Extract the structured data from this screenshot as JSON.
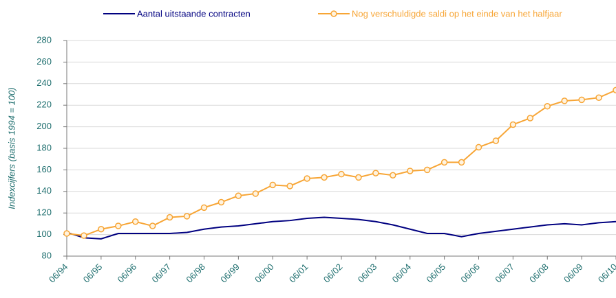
{
  "chart_data": {
    "type": "line",
    "y_label": "Indexcijfers (basis 1994 = 100)",
    "categories": [
      "06/94",
      null,
      "06/95",
      null,
      "06/96",
      null,
      "06/97",
      null,
      "06/98",
      null,
      "06/99",
      null,
      "06/00",
      null,
      "06/01",
      null,
      "06/02",
      null,
      "06/03",
      null,
      "06/04",
      null,
      "06/05",
      null,
      "06/06",
      null,
      "06/07",
      null,
      "06/08",
      null,
      "06/09",
      null,
      "06/10"
    ],
    "series": [
      {
        "name": "Aantal uitstaande contracten",
        "color": "#000080",
        "marker": false,
        "values": [
          102,
          97,
          96,
          101,
          101,
          101,
          101,
          102,
          105,
          107,
          108,
          110,
          112,
          113,
          115,
          116,
          115,
          114,
          112,
          109,
          105,
          101,
          101,
          98,
          101,
          103,
          105,
          107,
          109,
          110,
          109,
          111,
          112
        ]
      },
      {
        "name": "Nog verschuldigde saldi op het einde van het halfjaar",
        "color": "#f7a535",
        "marker": true,
        "values": [
          101,
          99,
          105,
          108,
          112,
          108,
          116,
          117,
          125,
          130,
          136,
          138,
          146,
          145,
          152,
          153,
          156,
          153,
          157,
          155,
          159,
          160,
          167,
          167,
          181,
          187,
          202,
          208,
          219,
          224,
          225,
          227,
          234
        ]
      }
    ],
    "ylim": [
      80,
      280
    ],
    "yticks": [
      80,
      100,
      120,
      140,
      160,
      180,
      200,
      220,
      240,
      260,
      280
    ],
    "grid": true,
    "legend": "top"
  }
}
